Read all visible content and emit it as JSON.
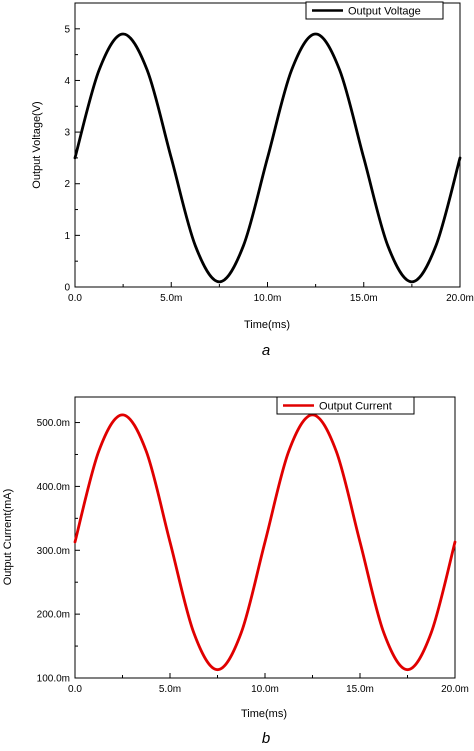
{
  "chart_data": [
    {
      "type": "line",
      "panel_label": "a",
      "xlabel": "Time(ms)",
      "ylabel": "Output Voltage(V)",
      "xlim": [
        0,
        20
      ],
      "ylim": [
        0,
        5.5
      ],
      "xticks": [
        0,
        5,
        10,
        15,
        20
      ],
      "xtick_labels": [
        "0.0",
        "5.0m",
        "10.0m",
        "15.0m",
        "20.0m"
      ],
      "yticks": [
        0,
        1,
        2,
        3,
        4,
        5
      ],
      "ytick_labels": [
        "0",
        "1",
        "2",
        "3",
        "4",
        "5"
      ],
      "legend_position": "top-right",
      "grid": false,
      "color": "#000000",
      "series": [
        {
          "name": "Output Voltage",
          "x": [
            0,
            1.25,
            2.5,
            3.75,
            5,
            6.25,
            7.5,
            8.75,
            10,
            11.25,
            12.5,
            13.75,
            15,
            16.25,
            17.5,
            18.75,
            20
          ],
          "y": [
            2.5,
            4.2,
            4.9,
            4.2,
            2.5,
            0.8,
            0.1,
            0.8,
            2.5,
            4.2,
            4.9,
            4.2,
            2.5,
            0.8,
            0.1,
            0.8,
            2.5
          ]
        }
      ]
    },
    {
      "type": "line",
      "panel_label": "b",
      "xlabel": "Time(ms)",
      "ylabel": "Output Current(mA)",
      "xlim": [
        0,
        20
      ],
      "ylim": [
        100,
        540
      ],
      "xticks": [
        0,
        5,
        10,
        15,
        20
      ],
      "xtick_labels": [
        "0.0",
        "5.0m",
        "10.0m",
        "15.0m",
        "20.0m"
      ],
      "yticks": [
        100,
        200,
        300,
        400,
        500
      ],
      "ytick_labels": [
        "100.0m",
        "200.0m",
        "300.0m",
        "400.0m",
        "500.0m"
      ],
      "legend_position": "top-right",
      "grid": false,
      "color": "#e00000",
      "series": [
        {
          "name": "Output Current",
          "x": [
            0,
            1.25,
            2.5,
            3.75,
            5,
            6.25,
            7.5,
            8.75,
            10,
            11.25,
            12.5,
            13.75,
            15,
            16.25,
            17.5,
            18.75,
            20
          ],
          "y": [
            313,
            455,
            512,
            455,
            313,
            171,
            113,
            171,
            313,
            455,
            512,
            455,
            313,
            171,
            113,
            171,
            313
          ]
        }
      ]
    }
  ]
}
